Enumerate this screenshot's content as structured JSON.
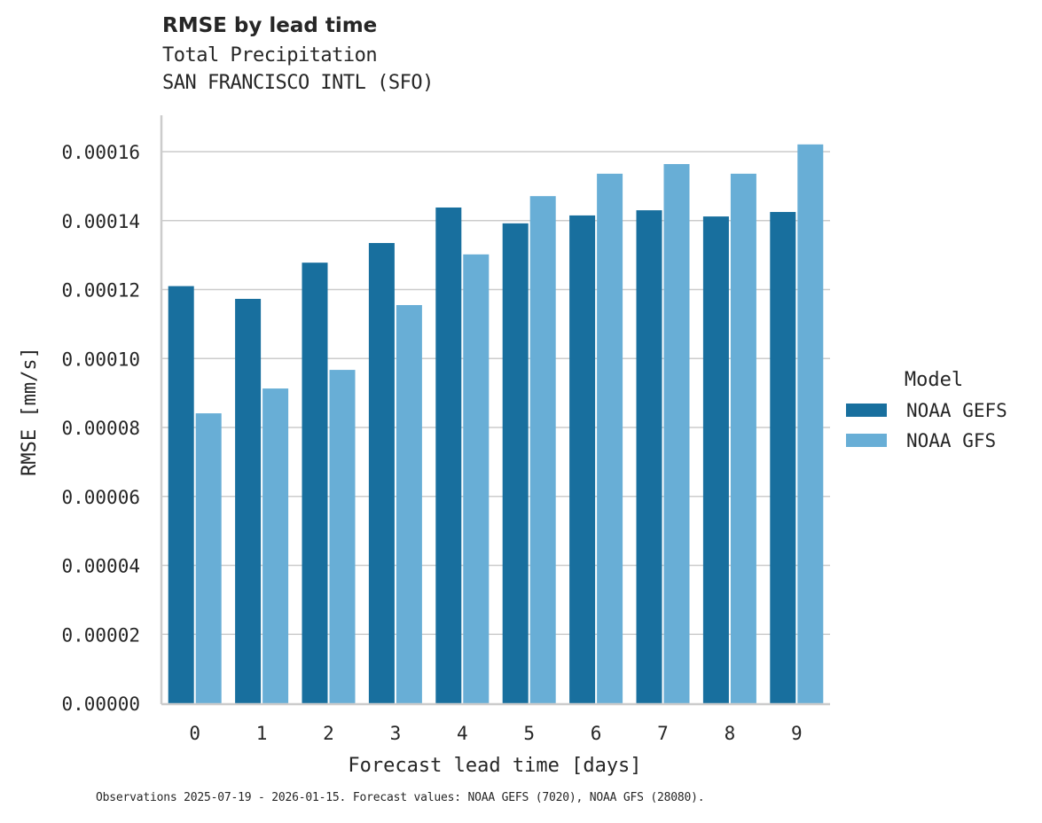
{
  "header": {
    "title": "RMSE by lead time",
    "subtitle_variable": "Total Precipitation",
    "subtitle_station": "SAN FRANCISCO INTL (SFO)"
  },
  "footnote": "Observations 2025-07-19 - 2026-01-15. Forecast values: NOAA GEFS (7020), NOAA GFS (28080).",
  "colors": {
    "NOAA GEFS": "#186f9e",
    "NOAA GFS": "#68aed6",
    "grid": "#cccccc",
    "axis": "#cccccc",
    "text": "#262626"
  },
  "chart_data": {
    "type": "bar",
    "title": "RMSE by lead time",
    "subtitle": "Total Precipitation — SAN FRANCISCO INTL (SFO)",
    "xlabel": "Forecast lead time [days]",
    "ylabel": "RMSE [mm/s]",
    "categories": [
      "0",
      "1",
      "2",
      "3",
      "4",
      "5",
      "6",
      "7",
      "8",
      "9"
    ],
    "series": [
      {
        "name": "NOAA GEFS",
        "values": [
          0.000121,
          0.0001173,
          0.0001278,
          0.0001335,
          0.0001438,
          0.0001392,
          0.0001415,
          0.000143,
          0.0001412,
          0.0001425
        ]
      },
      {
        "name": "NOAA GFS",
        "values": [
          8.41e-05,
          9.13e-05,
          9.67e-05,
          0.0001155,
          0.0001302,
          0.0001471,
          0.0001536,
          0.0001564,
          0.0001536,
          0.0001621
        ]
      }
    ],
    "ylim": [
      0,
      0.00017
    ],
    "yticks": [
      "0.00000",
      "0.00002",
      "0.00004",
      "0.00006",
      "0.00008",
      "0.00010",
      "0.00012",
      "0.00014",
      "0.00016"
    ],
    "ytick_values": [
      0,
      2e-05,
      4e-05,
      6e-05,
      8e-05,
      0.0001,
      0.00012,
      0.00014,
      0.00016
    ],
    "grid": "horizontal",
    "legend": {
      "title": "Model",
      "position": "right",
      "entries": [
        "NOAA GEFS",
        "NOAA GFS"
      ]
    }
  }
}
